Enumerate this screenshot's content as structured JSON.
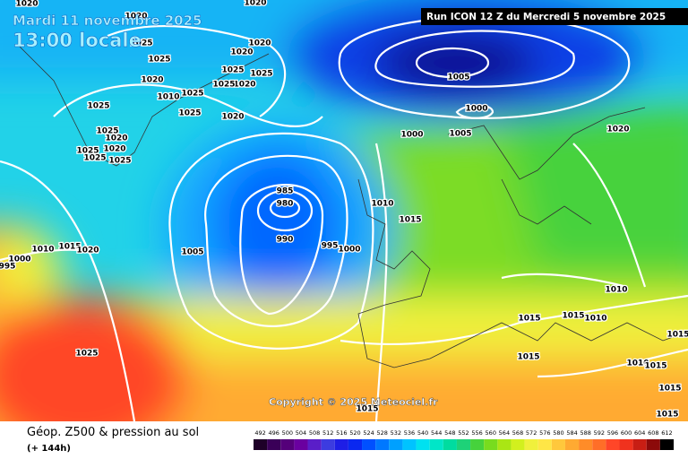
{
  "header": {
    "date": "Mardi 11 novembre 2025",
    "time": "13:00 locale",
    "run": "Run ICON 12 Z du Mercredi 5 novembre 2025"
  },
  "copyright": "Copyright © 2025 Meteociel.fr",
  "footer": {
    "title": "Géop. Z500 & pression au sol",
    "lead": "(+ 144h)"
  },
  "legend": {
    "values": [
      492,
      496,
      500,
      504,
      508,
      512,
      516,
      520,
      524,
      528,
      532,
      536,
      540,
      544,
      548,
      552,
      556,
      560,
      564,
      568,
      572,
      576,
      580,
      584,
      588,
      592,
      596,
      600,
      604,
      608,
      612
    ],
    "colors": [
      "#1e0028",
      "#3a0058",
      "#55007a",
      "#6a00a0",
      "#5a1ec8",
      "#3c3ce0",
      "#1e1ee6",
      "#0a28f0",
      "#0050ff",
      "#0078ff",
      "#00a0ff",
      "#00c3ff",
      "#00e1f0",
      "#00e6c8",
      "#00dca0",
      "#1ed278",
      "#46d23c",
      "#78dc1e",
      "#aae614",
      "#d2f01e",
      "#f0f03c",
      "#ffe646",
      "#ffc83c",
      "#ffaa32",
      "#ff8c28",
      "#ff6e28",
      "#ff4628",
      "#f0321e",
      "#c81e14",
      "#8c0a0a",
      "#000000"
    ]
  },
  "isobar_labels": [
    "1020",
    "1020",
    "1020",
    "1025",
    "1020",
    "1025",
    "1020",
    "1025",
    "1025",
    "1020",
    "1020",
    "1025",
    "1010",
    "1025",
    "1025",
    "1025",
    "1020",
    "1025",
    "1020",
    "1020",
    "1025",
    "1025",
    "1025",
    "1005",
    "1000",
    "1000",
    "1005",
    "1020",
    "985",
    "980",
    "990",
    "1005",
    "995",
    "1000",
    "1010",
    "1015",
    "1015",
    "1020",
    "1010",
    "1000",
    "995",
    "1010",
    "1015",
    "1015",
    "1010",
    "1015",
    "1025",
    "1015",
    "1010",
    "1015",
    "1015",
    "1015",
    "1015"
  ]
}
